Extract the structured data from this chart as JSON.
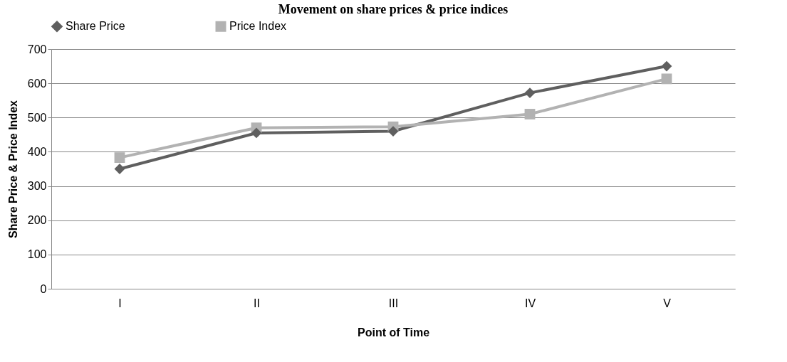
{
  "chart_data": {
    "type": "line",
    "title": "Movement on share prices & price indices",
    "xlabel": "Point of Time",
    "ylabel": "Share Price & Price Index",
    "categories": [
      "I",
      "II",
      "III",
      "IV",
      "V"
    ],
    "series": [
      {
        "name": "Share Price",
        "color": "#5f5f5f",
        "marker": "diamond",
        "values": [
          350,
          455,
          460,
          572,
          650
        ]
      },
      {
        "name": "Price Index",
        "color": "#b2b2b2",
        "marker": "square",
        "values": [
          383,
          470,
          473,
          510,
          613
        ]
      }
    ],
    "ylim": [
      0,
      700
    ],
    "yticks": [
      0,
      100,
      200,
      300,
      400,
      500,
      600,
      700
    ],
    "grid": "y",
    "legend": "top",
    "line_style": "solid"
  }
}
